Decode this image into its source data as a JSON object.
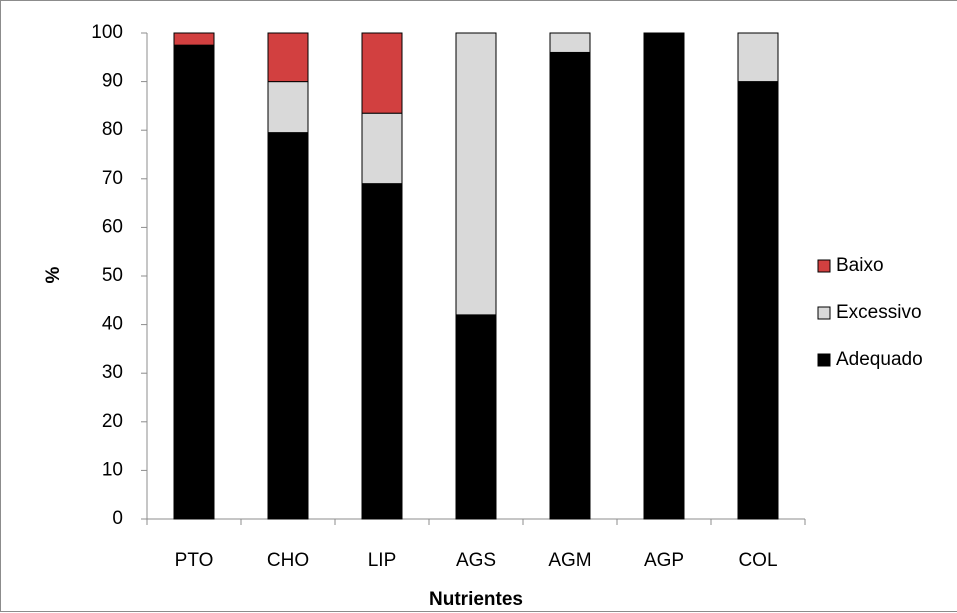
{
  "chart_data": {
    "type": "bar",
    "stacked": true,
    "normalized_percent": true,
    "categories": [
      "PTO",
      "CHO",
      "LIP",
      "AGS",
      "AGM",
      "AGP",
      "COL"
    ],
    "series": [
      {
        "name": "Adequado",
        "color": "#000000",
        "values": [
          97.5,
          79.5,
          69,
          42,
          96,
          100,
          90
        ]
      },
      {
        "name": "Excessivo",
        "color": "#d9d9d9",
        "values": [
          0,
          10.5,
          14.5,
          58,
          4,
          0,
          10
        ]
      },
      {
        "name": "Baixo",
        "color": "#d24040",
        "values": [
          2.5,
          10,
          16.5,
          0,
          0,
          0,
          0
        ]
      }
    ],
    "xlabel": "Nutrientes",
    "ylabel": "%",
    "ylim": [
      0,
      100
    ],
    "yticks": [
      "0",
      "10",
      "20",
      "30",
      "40",
      "50",
      "60",
      "70",
      "80",
      "90",
      "100"
    ],
    "grid": false,
    "legend": {
      "placement": "right",
      "order": [
        "Baixo",
        "Excessivo",
        "Adequado"
      ],
      "labels": [
        "Baixo",
        "Excessivo",
        "Adequado"
      ]
    }
  }
}
